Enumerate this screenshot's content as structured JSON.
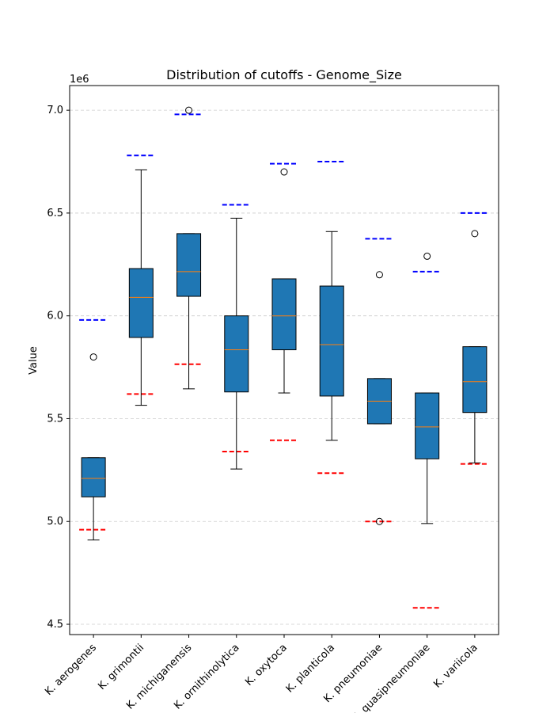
{
  "chart_data": {
    "type": "box",
    "title": "Distribution of cutoffs - Genome_Size",
    "xlabel": "",
    "ylabel": "Value",
    "y_scale_label": "1e6",
    "ylim": [
      4.45,
      7.12
    ],
    "yticks": [
      4.5,
      5.0,
      5.5,
      6.0,
      6.5,
      7.0
    ],
    "ytick_labels": [
      "4.5",
      "5.0",
      "5.5",
      "6.0",
      "6.5",
      "7.0"
    ],
    "grid": "y-dashed",
    "categories": [
      "K. aerogenes",
      "K. grimontii",
      "K. michiganensis",
      "K. ornithinolytica",
      "K. oxytoca",
      "K. planticola",
      "K. pneumoniae",
      "K. quasipneumoniae",
      "K. variicola"
    ],
    "boxes": [
      {
        "whislo": 4.91,
        "q1": 5.12,
        "med": 5.21,
        "q3": 5.31,
        "whishi": 5.31,
        "fliers": [
          5.8
        ]
      },
      {
        "whislo": 5.565,
        "q1": 5.895,
        "med": 6.09,
        "q3": 6.23,
        "whishi": 6.71,
        "fliers": []
      },
      {
        "whislo": 5.645,
        "q1": 6.095,
        "med": 6.215,
        "q3": 6.4,
        "whishi": 6.4,
        "fliers": [
          7.0
        ]
      },
      {
        "whislo": 5.255,
        "q1": 5.63,
        "med": 5.835,
        "q3": 6.0,
        "whishi": 6.475,
        "fliers": []
      },
      {
        "whislo": 5.625,
        "q1": 5.835,
        "med": 6.0,
        "q3": 6.18,
        "whishi": 6.18,
        "fliers": [
          6.7
        ]
      },
      {
        "whislo": 5.395,
        "q1": 5.61,
        "med": 5.86,
        "q3": 6.145,
        "whishi": 6.41,
        "fliers": []
      },
      {
        "whislo": 5.475,
        "q1": 5.475,
        "med": 5.585,
        "q3": 5.695,
        "whishi": 5.695,
        "fliers": [
          6.2,
          5.0
        ]
      },
      {
        "whislo": 4.99,
        "q1": 5.305,
        "med": 5.46,
        "q3": 5.625,
        "whishi": 5.625,
        "fliers": [
          6.29
        ]
      },
      {
        "whislo": 5.285,
        "q1": 5.53,
        "med": 5.68,
        "q3": 5.85,
        "whishi": 5.85,
        "fliers": [
          6.4
        ]
      }
    ],
    "cutoffs_upper": [
      5.98,
      6.78,
      6.98,
      6.54,
      6.74,
      6.75,
      6.375,
      6.215,
      6.5
    ],
    "cutoffs_lower": [
      4.96,
      5.62,
      5.765,
      5.34,
      5.395,
      5.235,
      5.0,
      4.58,
      5.28
    ],
    "colors": {
      "box_fill": "#1f77b4",
      "median": "#ff7f0e",
      "upper_cutoff": "#0000ff",
      "lower_cutoff": "#ff0000",
      "grid": "#cccccc"
    }
  }
}
